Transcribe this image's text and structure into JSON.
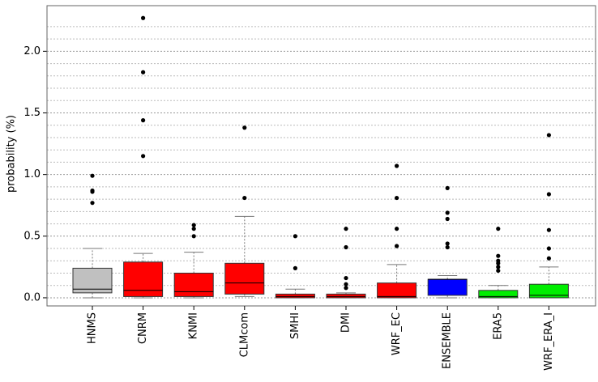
{
  "chart_data": {
    "type": "box",
    "y_label": "probability (%)",
    "ylim": [
      -0.066,
      2.37
    ],
    "yticks": [
      {
        "value": 0,
        "label": "0.0"
      },
      {
        "value": 0.5,
        "label": "0.5"
      },
      {
        "value": 1,
        "label": "1.0"
      },
      {
        "value": 1.5,
        "label": "1.5"
      },
      {
        "value": 2,
        "label": "2.0"
      }
    ],
    "minor_yticks": [
      0.1,
      0.2,
      0.3,
      0.4,
      0.6,
      0.7,
      0.8,
      0.9,
      1.1,
      1.2,
      1.3,
      1.4,
      1.6,
      1.7,
      1.8,
      1.9,
      2.1,
      2.2
    ],
    "grid": true,
    "boxes": [
      {
        "label": "HNMS",
        "color": "#c0c0c0",
        "whislo": 0.0,
        "q1": 0.04,
        "med": 0.07,
        "q3": 0.24,
        "whishi": 0.4,
        "fliers": [
          0.99,
          0.87,
          0.86,
          0.77
        ]
      },
      {
        "label": "CNRM",
        "color": "#ff0000",
        "whislo": 0.0,
        "q1": 0.01,
        "med": 0.06,
        "q3": 0.29,
        "whishi": 0.36,
        "fliers": [
          2.27,
          1.83,
          1.44,
          1.15
        ]
      },
      {
        "label": "KNMI",
        "color": "#ff0000",
        "whislo": 0.0,
        "q1": 0.01,
        "med": 0.05,
        "q3": 0.2,
        "whishi": 0.37,
        "fliers": [
          0.59,
          0.56,
          0.5
        ]
      },
      {
        "label": "CLMcom",
        "color": "#ff0000",
        "whislo": 0.01,
        "q1": 0.03,
        "med": 0.12,
        "q3": 0.28,
        "whishi": 0.66,
        "fliers": [
          1.38,
          0.81
        ]
      },
      {
        "label": "SMHI",
        "color": "#ff0000",
        "whislo": 0.0,
        "q1": 0.0,
        "med": 0.01,
        "q3": 0.03,
        "whishi": 0.07,
        "fliers": [
          0.5,
          0.24
        ]
      },
      {
        "label": "DMI",
        "color": "#ff0000",
        "whislo": 0.0,
        "q1": 0.0,
        "med": 0.01,
        "q3": 0.03,
        "whishi": 0.04,
        "fliers": [
          0.56,
          0.41,
          0.16,
          0.11,
          0.08
        ]
      },
      {
        "label": "WRF_EC",
        "color": "#ff0000",
        "whislo": 0.0,
        "q1": 0.0,
        "med": 0.01,
        "q3": 0.12,
        "whishi": 0.27,
        "fliers": [
          1.07,
          0.81,
          0.56,
          0.42
        ]
      },
      {
        "label": "ENSEMBLE",
        "color": "#0000ff",
        "whislo": 0.0,
        "q1": 0.02,
        "med": 0.15,
        "q3": 0.15,
        "whishi": 0.18,
        "fliers": [
          0.89,
          0.69,
          0.64,
          0.44,
          0.41
        ]
      },
      {
        "label": "ERA5",
        "color": "#00ee00",
        "whislo": 0.0,
        "q1": 0.0,
        "med": 0.01,
        "q3": 0.06,
        "whishi": 0.1,
        "fliers": [
          0.56,
          0.34,
          0.3,
          0.28,
          0.25,
          0.22
        ]
      },
      {
        "label": "WRF_ERA_I",
        "color": "#00ee00",
        "whislo": 0.0,
        "q1": 0.0,
        "med": 0.02,
        "q3": 0.11,
        "whishi": 0.25,
        "fliers": [
          1.32,
          0.84,
          0.55,
          0.4,
          0.32
        ]
      }
    ]
  }
}
